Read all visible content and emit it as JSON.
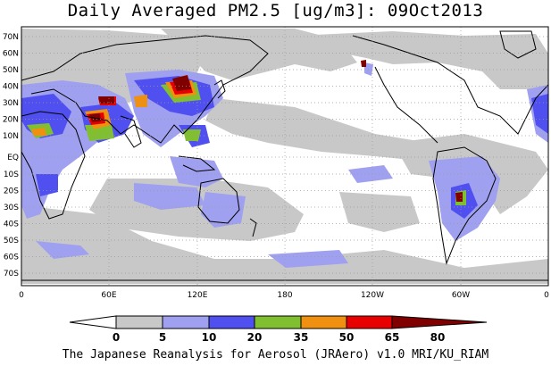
{
  "title": "Daily Averaged PM2.5 [ug/m3]: 09Oct2013",
  "latitude_labels": [
    "70N",
    "60N",
    "50N",
    "40N",
    "30N",
    "20N",
    "10N",
    "EQ",
    "10S",
    "20S",
    "30S",
    "40S",
    "50S",
    "60S",
    "70S"
  ],
  "longitude_labels": [
    "0",
    "60E",
    "120E",
    "180",
    "120W",
    "60W",
    "0"
  ],
  "colorbar": {
    "levels": [
      "0",
      "5",
      "10",
      "20",
      "35",
      "50",
      "65",
      "80"
    ],
    "colors": [
      "#ffffff",
      "#c8c8c8",
      "#a0a0f0",
      "#5050f0",
      "#80c030",
      "#f09010",
      "#e80000",
      "#800000"
    ]
  },
  "credit": "The Japanese Reanalysis for Aerosol (JRAero) v1.0 MRI/KU_RIAM"
}
